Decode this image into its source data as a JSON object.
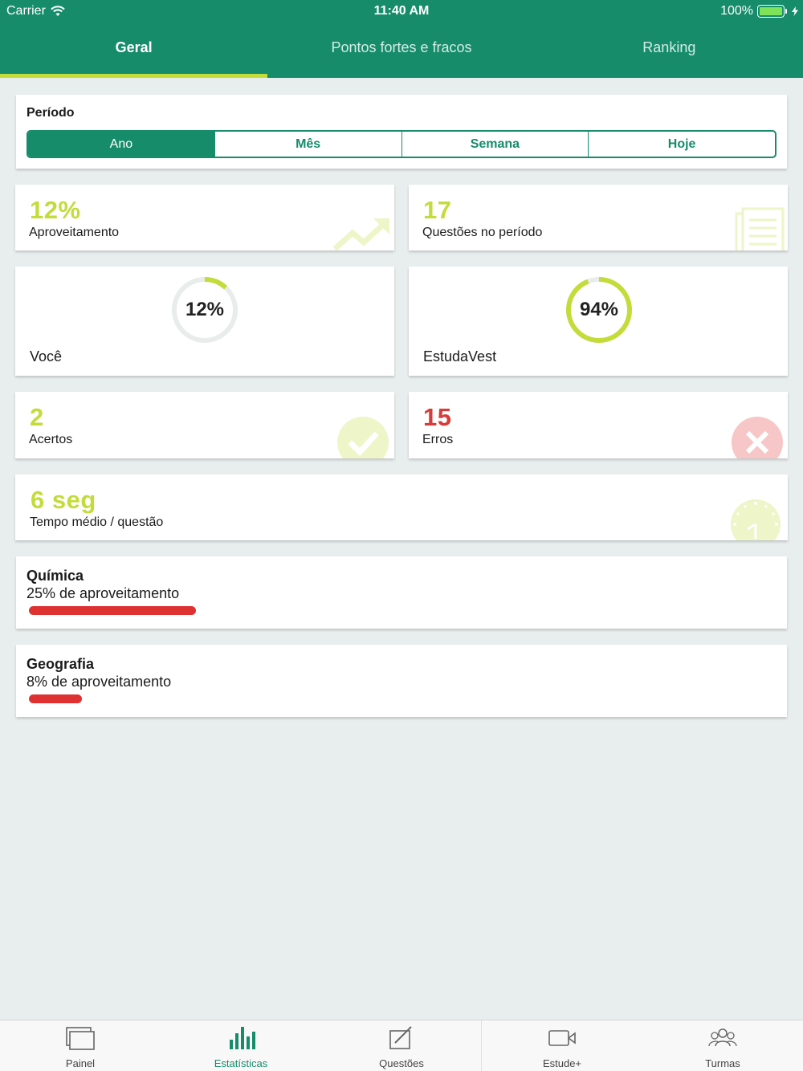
{
  "status_bar": {
    "carrier": "Carrier",
    "time": "11:40 AM",
    "battery": "100%"
  },
  "tabs": [
    {
      "label": "Geral",
      "active": true
    },
    {
      "label": "Pontos fortes e fracos",
      "active": false
    },
    {
      "label": "Ranking",
      "active": false
    }
  ],
  "periodo": {
    "title": "Período",
    "options": [
      "Ano",
      "Mês",
      "Semana",
      "Hoje"
    ],
    "selected": "Ano"
  },
  "stats": {
    "aproveitamento": {
      "value": "12%",
      "label": "Aproveitamento"
    },
    "questoes": {
      "value": "17",
      "label": "Questões no período"
    },
    "voce": {
      "percent_text": "12%",
      "percent": 12,
      "label": "Você"
    },
    "estudavest": {
      "percent_text": "94%",
      "percent": 94,
      "label": "EstudaVest"
    },
    "acertos": {
      "value": "2",
      "label": "Acertos"
    },
    "erros": {
      "value": "15",
      "label": "Erros"
    },
    "tempo": {
      "value": "6 seg",
      "label": "Tempo médio / questão"
    }
  },
  "subjects": [
    {
      "name": "Química",
      "text": "25% de aproveitamento",
      "percent": 25
    },
    {
      "name": "Geografia",
      "text": "8% de aproveitamento",
      "percent": 8
    }
  ],
  "bottom_nav": [
    {
      "label": "Painel",
      "icon": "panel-icon",
      "active": false
    },
    {
      "label": "Estatísticas",
      "icon": "bar-chart-icon",
      "active": true
    },
    {
      "label": "Questões",
      "icon": "edit-icon",
      "active": false
    },
    {
      "label": "Estude+",
      "icon": "video-camera-icon",
      "active": false
    },
    {
      "label": "Turmas",
      "icon": "group-icon",
      "active": false
    }
  ],
  "colors": {
    "primary": "#178c6b",
    "accent": "#c3dc3a",
    "error": "#d93a3a",
    "bar": "#de3131",
    "background": "#e8eeed"
  }
}
